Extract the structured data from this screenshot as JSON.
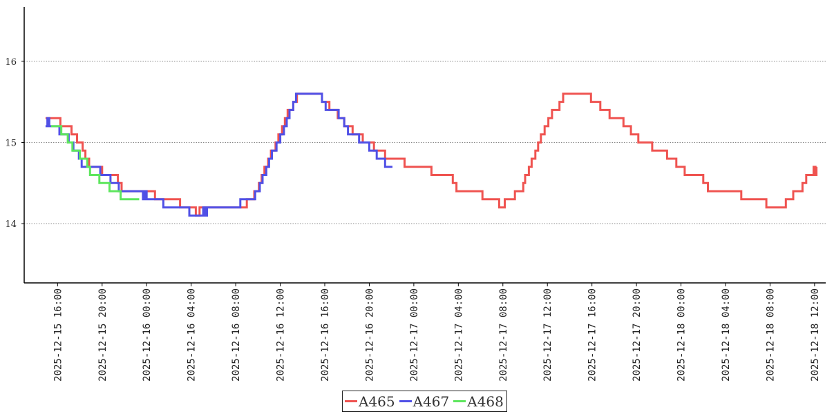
{
  "chart_data": {
    "type": "line",
    "title": "",
    "xlabel": "",
    "ylabel": "",
    "x_range": [
      "2025-12-15 13:00",
      "2025-12-18 13:00"
    ],
    "ylim": [
      13.27,
      16.67
    ],
    "yticks": [
      14,
      15,
      16
    ],
    "ytick_labels": [
      "14",
      "15",
      "16"
    ],
    "xticks": [
      "2025-12-15 16:00",
      "2025-12-15 20:00",
      "2025-12-16 00:00",
      "2025-12-16 04:00",
      "2025-12-16 08:00",
      "2025-12-16 12:00",
      "2025-12-16 16:00",
      "2025-12-16 20:00",
      "2025-12-17 00:00",
      "2025-12-17 04:00",
      "2025-12-17 08:00",
      "2025-12-17 12:00",
      "2025-12-17 16:00",
      "2025-12-17 20:00",
      "2025-12-18 00:00",
      "2025-12-18 04:00",
      "2025-12-18 08:00",
      "2025-12-18 12:00"
    ],
    "xtick_labels": [
      "2025-12-15 16:00",
      "2025-12-15 20:00",
      "2025-12-16 00:00",
      "2025-12-16 04:00",
      "2025-12-16 08:00",
      "2025-12-16 12:00",
      "2025-12-16 16:00",
      "2025-12-16 20:00",
      "2025-12-17 00:00",
      "2025-12-17 04:00",
      "2025-12-17 08:00",
      "2025-12-17 12:00",
      "2025-12-17 16:00",
      "2025-12-17 20:00",
      "2025-12-18 00:00",
      "2025-12-18 04:00",
      "2025-12-18 08:00",
      "2025-12-18 12:00"
    ],
    "grid": "horizontal-dotted",
    "legend_position": "bottom-center",
    "series": [
      {
        "name": "A465",
        "color": "#ef5350",
        "step": true,
        "points": [
          [
            "2025-12-15 14:55",
            15.3
          ],
          [
            "2025-12-15 16:15",
            15.2
          ],
          [
            "2025-12-15 17:15",
            15.1
          ],
          [
            "2025-12-15 17:45",
            15.0
          ],
          [
            "2025-12-15 18:15",
            14.9
          ],
          [
            "2025-12-15 18:30",
            14.8
          ],
          [
            "2025-12-15 18:50",
            14.7
          ],
          [
            "2025-12-15 20:00",
            14.6
          ],
          [
            "2025-12-15 21:25",
            14.5
          ],
          [
            "2025-12-15 21:45",
            14.4
          ],
          [
            "2025-12-16 00:45",
            14.3
          ],
          [
            "2025-12-16 03:00",
            14.2
          ],
          [
            "2025-12-16 04:25",
            14.1
          ],
          [
            "2025-12-16 04:45",
            14.2
          ],
          [
            "2025-12-16 09:00",
            14.3
          ],
          [
            "2025-12-16 09:40",
            14.4
          ],
          [
            "2025-12-16 10:05",
            14.5
          ],
          [
            "2025-12-16 10:20",
            14.6
          ],
          [
            "2025-12-16 10:35",
            14.7
          ],
          [
            "2025-12-16 10:55",
            14.8
          ],
          [
            "2025-12-16 11:10",
            14.9
          ],
          [
            "2025-12-16 11:35",
            15.0
          ],
          [
            "2025-12-16 11:50",
            15.1
          ],
          [
            "2025-12-16 12:10",
            15.2
          ],
          [
            "2025-12-16 12:25",
            15.3
          ],
          [
            "2025-12-16 12:40",
            15.4
          ],
          [
            "2025-12-16 13:10",
            15.5
          ],
          [
            "2025-12-16 13:30",
            15.6
          ],
          [
            "2025-12-16 15:45",
            15.5
          ],
          [
            "2025-12-16 16:25",
            15.4
          ],
          [
            "2025-12-16 17:10",
            15.3
          ],
          [
            "2025-12-16 17:45",
            15.2
          ],
          [
            "2025-12-16 18:30",
            15.1
          ],
          [
            "2025-12-16 19:25",
            15.0
          ],
          [
            "2025-12-16 20:25",
            14.9
          ],
          [
            "2025-12-16 21:25",
            14.8
          ],
          [
            "2025-12-16 23:10",
            14.7
          ],
          [
            "2025-12-17 01:35",
            14.6
          ],
          [
            "2025-12-17 03:30",
            14.5
          ],
          [
            "2025-12-17 03:50",
            14.4
          ],
          [
            "2025-12-17 06:10",
            14.3
          ],
          [
            "2025-12-17 07:40",
            14.2
          ],
          [
            "2025-12-17 08:10",
            14.3
          ],
          [
            "2025-12-17 09:05",
            14.4
          ],
          [
            "2025-12-17 09:50",
            14.5
          ],
          [
            "2025-12-17 10:00",
            14.6
          ],
          [
            "2025-12-17 10:20",
            14.7
          ],
          [
            "2025-12-17 10:35",
            14.8
          ],
          [
            "2025-12-17 10:55",
            14.9
          ],
          [
            "2025-12-17 11:10",
            15.0
          ],
          [
            "2025-12-17 11:25",
            15.1
          ],
          [
            "2025-12-17 11:45",
            15.2
          ],
          [
            "2025-12-17 12:05",
            15.3
          ],
          [
            "2025-12-17 12:25",
            15.4
          ],
          [
            "2025-12-17 13:05",
            15.5
          ],
          [
            "2025-12-17 13:25",
            15.6
          ],
          [
            "2025-12-17 15:55",
            15.5
          ],
          [
            "2025-12-17 16:45",
            15.4
          ],
          [
            "2025-12-17 17:35",
            15.3
          ],
          [
            "2025-12-17 18:50",
            15.2
          ],
          [
            "2025-12-17 19:30",
            15.1
          ],
          [
            "2025-12-17 20:10",
            15.0
          ],
          [
            "2025-12-17 21:25",
            14.9
          ],
          [
            "2025-12-17 22:45",
            14.8
          ],
          [
            "2025-12-17 23:35",
            14.7
          ],
          [
            "2025-12-18 00:20",
            14.6
          ],
          [
            "2025-12-18 02:00",
            14.5
          ],
          [
            "2025-12-18 02:25",
            14.4
          ],
          [
            "2025-12-18 05:25",
            14.3
          ],
          [
            "2025-12-18 07:40",
            14.2
          ],
          [
            "2025-12-18 09:25",
            14.3
          ],
          [
            "2025-12-18 10:05",
            14.4
          ],
          [
            "2025-12-18 10:55",
            14.5
          ],
          [
            "2025-12-18 11:15",
            14.6
          ],
          [
            "2025-12-18 11:55",
            14.7
          ],
          [
            "2025-12-18 12:05",
            14.6
          ],
          [
            "2025-12-18 12:10",
            14.7
          ]
        ]
      },
      {
        "name": "A467",
        "color": "#5050e6",
        "step": true,
        "points": [
          [
            "2025-12-15 14:55",
            15.2
          ],
          [
            "2025-12-15 15:05",
            15.3
          ],
          [
            "2025-12-15 15:15",
            15.2
          ],
          [
            "2025-12-15 16:10",
            15.1
          ],
          [
            "2025-12-15 17:00",
            15.0
          ],
          [
            "2025-12-15 17:25",
            14.9
          ],
          [
            "2025-12-15 17:55",
            14.8
          ],
          [
            "2025-12-15 18:10",
            14.7
          ],
          [
            "2025-12-15 19:50",
            14.6
          ],
          [
            "2025-12-15 20:45",
            14.5
          ],
          [
            "2025-12-15 21:30",
            14.4
          ],
          [
            "2025-12-15 23:40",
            14.3
          ],
          [
            "2025-12-15 23:50",
            14.4
          ],
          [
            "2025-12-16 00:00",
            14.3
          ],
          [
            "2025-12-16 01:30",
            14.2
          ],
          [
            "2025-12-16 03:50",
            14.1
          ],
          [
            "2025-12-16 05:05",
            14.2
          ],
          [
            "2025-12-16 05:15",
            14.1
          ],
          [
            "2025-12-16 05:25",
            14.2
          ],
          [
            "2025-12-16 08:25",
            14.3
          ],
          [
            "2025-12-16 09:45",
            14.4
          ],
          [
            "2025-12-16 10:10",
            14.5
          ],
          [
            "2025-12-16 10:25",
            14.6
          ],
          [
            "2025-12-16 10:45",
            14.7
          ],
          [
            "2025-12-16 11:00",
            14.8
          ],
          [
            "2025-12-16 11:15",
            14.9
          ],
          [
            "2025-12-16 11:40",
            15.0
          ],
          [
            "2025-12-16 12:00",
            15.1
          ],
          [
            "2025-12-16 12:20",
            15.2
          ],
          [
            "2025-12-16 12:35",
            15.3
          ],
          [
            "2025-12-16 12:50",
            15.4
          ],
          [
            "2025-12-16 13:10",
            15.5
          ],
          [
            "2025-12-16 13:25",
            15.6
          ],
          [
            "2025-12-16 15:45",
            15.5
          ],
          [
            "2025-12-16 16:05",
            15.4
          ],
          [
            "2025-12-16 17:15",
            15.3
          ],
          [
            "2025-12-16 17:45",
            15.2
          ],
          [
            "2025-12-16 18:05",
            15.1
          ],
          [
            "2025-12-16 19:05",
            15.0
          ],
          [
            "2025-12-16 20:00",
            14.9
          ],
          [
            "2025-12-16 20:40",
            14.8
          ],
          [
            "2025-12-16 21:25",
            14.7
          ],
          [
            "2025-12-16 22:05",
            14.7
          ]
        ]
      },
      {
        "name": "A468",
        "color": "#5de65d",
        "step": true,
        "points": [
          [
            "2025-12-15 15:25",
            15.2
          ],
          [
            "2025-12-15 16:20",
            15.1
          ],
          [
            "2025-12-15 16:55",
            15.0
          ],
          [
            "2025-12-15 17:20",
            14.9
          ],
          [
            "2025-12-15 18:00",
            14.8
          ],
          [
            "2025-12-15 18:40",
            14.7
          ],
          [
            "2025-12-15 18:55",
            14.6
          ],
          [
            "2025-12-15 19:45",
            14.5
          ],
          [
            "2025-12-15 20:40",
            14.4
          ],
          [
            "2025-12-15 21:40",
            14.3
          ],
          [
            "2025-12-15 23:20",
            14.3
          ]
        ]
      }
    ]
  }
}
